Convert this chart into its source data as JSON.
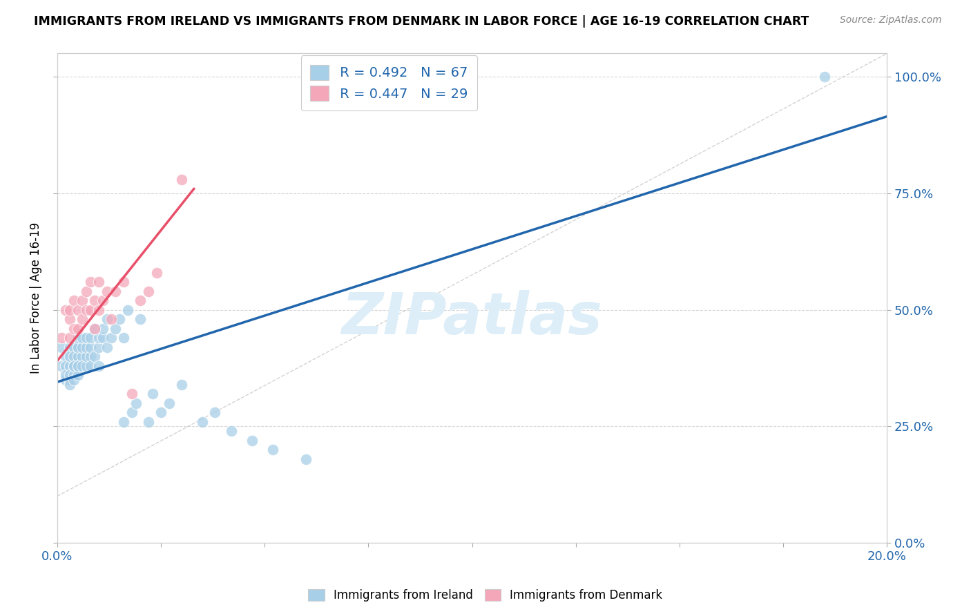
{
  "title": "IMMIGRANTS FROM IRELAND VS IMMIGRANTS FROM DENMARK IN LABOR FORCE | AGE 16-19 CORRELATION CHART",
  "source": "Source: ZipAtlas.com",
  "ylabel": "In Labor Force | Age 16-19",
  "xlim": [
    0.0,
    0.2
  ],
  "ylim": [
    0.0,
    1.05
  ],
  "xticks": [
    0.0,
    0.025,
    0.05,
    0.075,
    0.1,
    0.125,
    0.15,
    0.175,
    0.2
  ],
  "ytick_labels_right": [
    "0.0%",
    "25.0%",
    "50.0%",
    "75.0%",
    "100.0%"
  ],
  "ytick_positions_right": [
    0.0,
    0.25,
    0.5,
    0.75,
    1.0
  ],
  "R_ireland": 0.492,
  "N_ireland": 67,
  "R_denmark": 0.447,
  "N_denmark": 29,
  "color_ireland": "#a8cfe8",
  "color_denmark": "#f4a7b9",
  "trendline_ireland_color": "#2166ac",
  "trendline_denmark_color": "#e8506a",
  "refline_color": "#c0c0c0",
  "legend_R_color": "#2166ac",
  "watermark_color": "#ddeef8",
  "watermark_text": "ZIPatlas",
  "ireland_x": [
    0.001,
    0.001,
    0.002,
    0.002,
    0.002,
    0.002,
    0.003,
    0.003,
    0.003,
    0.003,
    0.003,
    0.003,
    0.004,
    0.004,
    0.004,
    0.004,
    0.004,
    0.004,
    0.005,
    0.005,
    0.005,
    0.005,
    0.005,
    0.005,
    0.005,
    0.006,
    0.006,
    0.006,
    0.006,
    0.007,
    0.007,
    0.007,
    0.007,
    0.008,
    0.008,
    0.008,
    0.008,
    0.009,
    0.009,
    0.01,
    0.01,
    0.01,
    0.011,
    0.011,
    0.012,
    0.012,
    0.013,
    0.014,
    0.015,
    0.016,
    0.016,
    0.017,
    0.018,
    0.019,
    0.02,
    0.022,
    0.023,
    0.025,
    0.027,
    0.03,
    0.035,
    0.038,
    0.042,
    0.047,
    0.052,
    0.06,
    0.185
  ],
  "ireland_y": [
    0.38,
    0.42,
    0.35,
    0.4,
    0.38,
    0.36,
    0.42,
    0.38,
    0.35,
    0.4,
    0.36,
    0.34,
    0.42,
    0.38,
    0.36,
    0.35,
    0.4,
    0.38,
    0.42,
    0.4,
    0.38,
    0.36,
    0.42,
    0.44,
    0.38,
    0.4,
    0.38,
    0.42,
    0.44,
    0.38,
    0.4,
    0.42,
    0.44,
    0.4,
    0.42,
    0.38,
    0.44,
    0.4,
    0.46,
    0.42,
    0.44,
    0.38,
    0.44,
    0.46,
    0.42,
    0.48,
    0.44,
    0.46,
    0.48,
    0.44,
    0.26,
    0.5,
    0.28,
    0.3,
    0.48,
    0.26,
    0.32,
    0.28,
    0.3,
    0.34,
    0.26,
    0.28,
    0.24,
    0.22,
    0.2,
    0.18,
    1.0
  ],
  "denmark_x": [
    0.001,
    0.002,
    0.003,
    0.003,
    0.003,
    0.004,
    0.004,
    0.005,
    0.005,
    0.006,
    0.006,
    0.007,
    0.007,
    0.008,
    0.008,
    0.009,
    0.009,
    0.01,
    0.01,
    0.011,
    0.012,
    0.013,
    0.014,
    0.016,
    0.018,
    0.02,
    0.022,
    0.024,
    0.03
  ],
  "denmark_y": [
    0.44,
    0.5,
    0.44,
    0.48,
    0.5,
    0.46,
    0.52,
    0.46,
    0.5,
    0.48,
    0.52,
    0.5,
    0.54,
    0.5,
    0.56,
    0.46,
    0.52,
    0.5,
    0.56,
    0.52,
    0.54,
    0.48,
    0.54,
    0.56,
    0.32,
    0.52,
    0.54,
    0.58,
    0.78
  ],
  "trend_ireland_x0": 0.0,
  "trend_ireland_y0": 0.345,
  "trend_ireland_x1": 0.2,
  "trend_ireland_y1": 0.915,
  "trend_denmark_x0": 0.0,
  "trend_denmark_y0": 0.39,
  "trend_denmark_x1": 0.033,
  "trend_denmark_y1": 0.76
}
